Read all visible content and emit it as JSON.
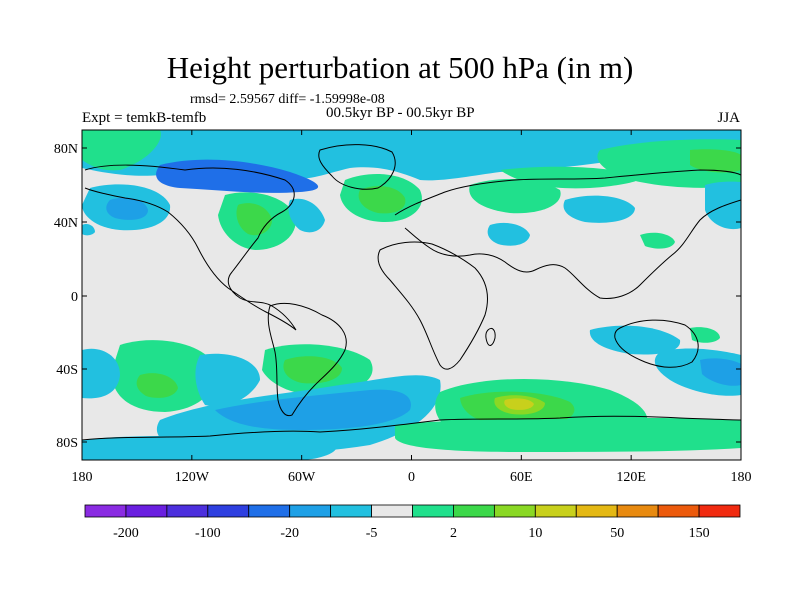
{
  "title": "Height perturbation at 500 hPa (in m)",
  "stats_line": "rmsd= 2.59567 diff= -1.59998e-08",
  "subtitle_left": "Expt = temkB-temfb",
  "subtitle_center": "00.5kyr BP - 00.5kyr BP",
  "subtitle_right": "JJA",
  "lat_ticks": [
    "80N",
    "40N",
    "0",
    "40S",
    "80S"
  ],
  "lon_ticks": [
    "180",
    "120W",
    "60W",
    "0",
    "60E",
    "120E",
    "180"
  ],
  "colorbar": {
    "labels": [
      "-200",
      "-100",
      "-20",
      "-5",
      "2",
      "10",
      "50",
      "150"
    ],
    "colors": [
      "#8a2be2",
      "#6a1fe0",
      "#4c2fdd",
      "#2e3fe0",
      "#1f6fe8",
      "#1ea0e6",
      "#22c0e0",
      "#e8e8e8",
      "#20e08c",
      "#3cd84a",
      "#8ad824",
      "#c8d01c",
      "#e4b814",
      "#e88a10",
      "#ec5a0c",
      "#f02a10"
    ]
  }
}
